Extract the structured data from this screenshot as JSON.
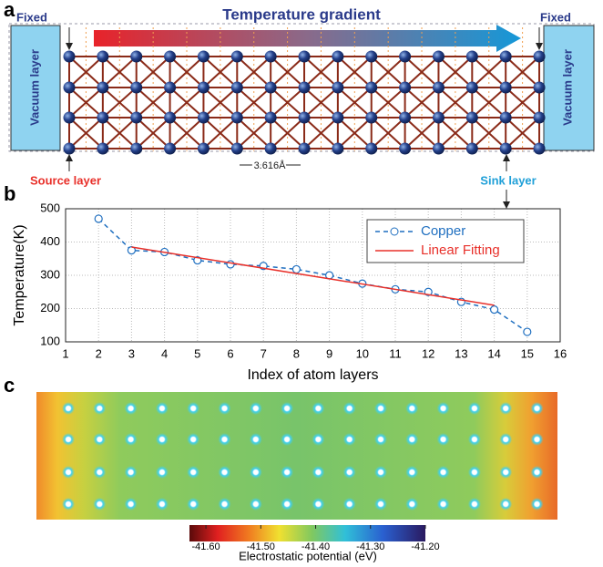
{
  "panel_a": {
    "label": "a",
    "fixed_left": "Fixed",
    "title": "Temperature gradient",
    "fixed_right": "Fixed",
    "vacuum_left": "Vacuum layer",
    "vacuum_right": "Vacuum layer",
    "scale": "3.616Å",
    "source": "Source layer",
    "sink": "Sink layer"
  },
  "chart_data": {
    "type": "line",
    "label": "b",
    "xlabel": "Index of atom layers",
    "ylabel": "Temperature(K)",
    "xlim": [
      1,
      16
    ],
    "xticks": [
      1,
      2,
      3,
      4,
      5,
      6,
      7,
      8,
      9,
      10,
      11,
      12,
      13,
      14,
      15,
      16
    ],
    "ylim": [
      100,
      500
    ],
    "yticks": [
      100,
      200,
      300,
      400,
      500
    ],
    "grid": true,
    "series": [
      {
        "name": "Copper",
        "color": "#1f6fc0",
        "x": [
          2,
          3,
          4,
          5,
          6,
          7,
          8,
          9,
          10,
          11,
          12,
          13,
          14,
          15
        ],
        "values": [
          470,
          375,
          370,
          345,
          333,
          328,
          318,
          300,
          275,
          258,
          250,
          220,
          197,
          130
        ]
      },
      {
        "name": "Linear Fitting",
        "color": "#e8302a",
        "x": [
          3,
          14
        ],
        "values": [
          385,
          210
        ]
      }
    ]
  },
  "panel_c": {
    "label": "c",
    "colorbar_label": "Electrostatic potential (eV)",
    "colorbar_lim": [
      -41.63,
      -41.2
    ],
    "colorbar_ticks": [
      {
        "value": -41.6,
        "label": "-41.60"
      },
      {
        "value": -41.5,
        "label": "-41.50"
      },
      {
        "value": -41.4,
        "label": "-41.40"
      },
      {
        "value": -41.3,
        "label": "-41.30"
      },
      {
        "value": -41.2,
        "label": "-41.20"
      }
    ]
  }
}
